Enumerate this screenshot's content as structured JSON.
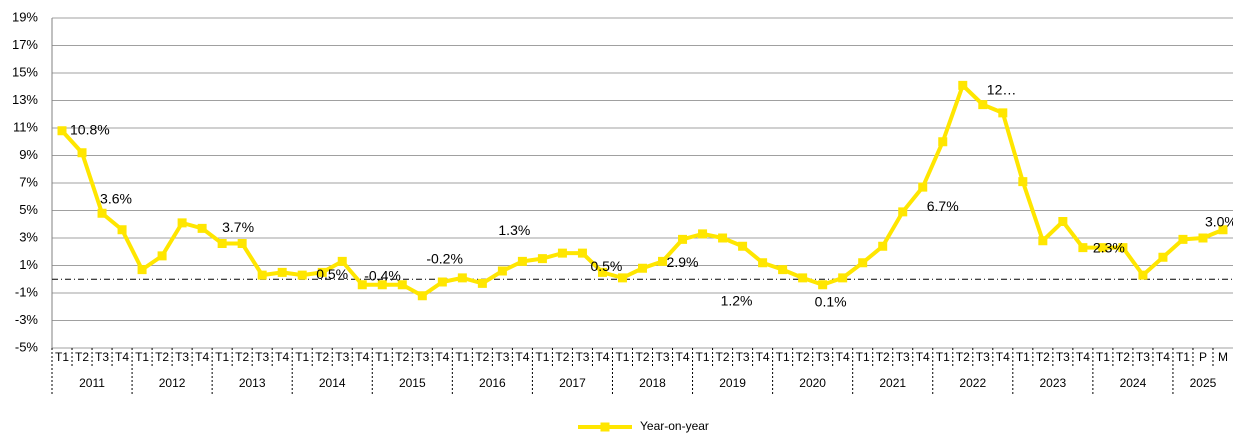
{
  "chart_data": {
    "type": "line",
    "year_groups": [
      {
        "label": "2011",
        "quarters": [
          "T1",
          "T2",
          "T3",
          "T4"
        ]
      },
      {
        "label": "2012",
        "quarters": [
          "T1",
          "T2",
          "T3",
          "T4"
        ]
      },
      {
        "label": "2013",
        "quarters": [
          "T1",
          "T2",
          "T3",
          "T4"
        ]
      },
      {
        "label": "2014",
        "quarters": [
          "T1",
          "T2",
          "T3",
          "T4"
        ]
      },
      {
        "label": "2015",
        "quarters": [
          "T1",
          "T2",
          "T3",
          "T4"
        ]
      },
      {
        "label": "2016",
        "quarters": [
          "T1",
          "T2",
          "T3",
          "T4"
        ]
      },
      {
        "label": "2017",
        "quarters": [
          "T1",
          "T2",
          "T3",
          "T4"
        ]
      },
      {
        "label": "2018",
        "quarters": [
          "T1",
          "T2",
          "T3",
          "T4"
        ]
      },
      {
        "label": "2019",
        "quarters": [
          "T1",
          "T2",
          "T3",
          "T4"
        ]
      },
      {
        "label": "2020",
        "quarters": [
          "T1",
          "T2",
          "T3",
          "T4"
        ]
      },
      {
        "label": "2021",
        "quarters": [
          "T1",
          "T2",
          "T3",
          "T4"
        ]
      },
      {
        "label": "2022",
        "quarters": [
          "T1",
          "T2",
          "T3",
          "T4"
        ]
      },
      {
        "label": "2023",
        "quarters": [
          "T1",
          "T2",
          "T3",
          "T4"
        ]
      },
      {
        "label": "2024",
        "quarters": [
          "T1",
          "T2",
          "T3",
          "T4"
        ]
      },
      {
        "label": "2025",
        "quarters": [
          "T1",
          "P",
          "M"
        ]
      }
    ],
    "series": [
      {
        "name": "Year-on-year",
        "color": "#FFE600",
        "values": [
          10.8,
          9.2,
          4.8,
          3.6,
          0.7,
          1.7,
          4.1,
          3.7,
          2.6,
          2.6,
          0.3,
          0.5,
          0.3,
          0.5,
          1.3,
          -0.4,
          -0.4,
          -0.4,
          -1.2,
          -0.2,
          0.1,
          -0.3,
          0.6,
          1.3,
          1.5,
          1.9,
          1.9,
          0.5,
          0.1,
          0.8,
          1.3,
          2.9,
          3.3,
          3.0,
          2.4,
          1.2,
          0.7,
          0.1,
          -0.4,
          0.1,
          1.2,
          2.4,
          4.9,
          6.7,
          10.0,
          14.1,
          12.7,
          12.1,
          7.1,
          2.8,
          4.2,
          2.3,
          2.3,
          2.3,
          0.3,
          1.6,
          2.9,
          3.0,
          3.6
        ],
        "value_labels": [
          "10.8%",
          null,
          null,
          "3.6%",
          null,
          null,
          null,
          "3.7%",
          null,
          null,
          null,
          null,
          null,
          "0.5%",
          null,
          null,
          "-0.4%",
          null,
          null,
          "-0.2%",
          null,
          null,
          null,
          "1.3%",
          null,
          null,
          null,
          "0.5%",
          null,
          null,
          null,
          "2.9%",
          null,
          null,
          null,
          "1.2%",
          null,
          null,
          null,
          "0.1%",
          null,
          null,
          null,
          "6.7%",
          null,
          null,
          "12…",
          null,
          null,
          null,
          null,
          null,
          null,
          "2.3%",
          null,
          null,
          null,
          "3.0%",
          null
        ]
      }
    ],
    "ylim": [
      -5,
      19
    ],
    "yticks": [
      {
        "value": -5,
        "label": "-5%"
      },
      {
        "value": -3,
        "label": "-3%"
      },
      {
        "value": -1,
        "label": "-1%"
      },
      {
        "value": 1,
        "label": "1%"
      },
      {
        "value": 3,
        "label": "3%"
      },
      {
        "value": 5,
        "label": "5%"
      },
      {
        "value": 7,
        "label": "7%"
      },
      {
        "value": 9,
        "label": "9%"
      },
      {
        "value": 11,
        "label": "11%"
      },
      {
        "value": 13,
        "label": "13%"
      },
      {
        "value": 15,
        "label": "15%"
      },
      {
        "value": 17,
        "label": "17%"
      },
      {
        "value": 19,
        "label": "19%"
      }
    ],
    "grid": true,
    "legend": "bottom"
  }
}
